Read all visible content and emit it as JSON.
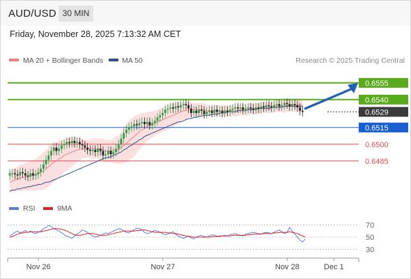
{
  "header": {
    "symbol": "AUD/USD",
    "interval": "30 MIN",
    "datetime": "Friday, November 28, 2025 7:13:32 AM CET"
  },
  "legend": {
    "ma20": "MA 20 + Bollinger Bands",
    "ma50": "MA 50",
    "ma20_color": "#f08080",
    "ma50_color": "#2f4f8f",
    "credit": "Research © 2025 Trading Central"
  },
  "rsi_legend": {
    "rsi": "RSI",
    "ma": "9MA",
    "rsi_color": "#5b7fd6",
    "ma_color": "#e02020"
  },
  "chart_data": [
    {
      "type": "candlestick",
      "title": "AUD/USD",
      "ylim": [
        0.6453,
        0.6568
      ],
      "x_ticks": [
        {
          "label": "Nov 26",
          "index": 10
        },
        {
          "label": "Nov 27",
          "index": 58
        },
        {
          "label": "Nov 28",
          "index": 106
        },
        {
          "label": "Dec 1",
          "index": 124
        }
      ],
      "levels": [
        {
          "value": 0.6555,
          "label": "0.6555",
          "color": "#5aaa1e",
          "style": "box"
        },
        {
          "value": 0.654,
          "label": "0.6540",
          "color": "#5aaa1e",
          "style": "box"
        },
        {
          "value": 0.6529,
          "label": "0.6529",
          "color": "#3a3a3a",
          "style": "box"
        },
        {
          "value": 0.6515,
          "label": "0.6515",
          "color": "#1a5fd0",
          "style": "box"
        },
        {
          "value": 0.65,
          "label": "0.6500",
          "color": "#e05050",
          "style": "text"
        },
        {
          "value": 0.6485,
          "label": "0.6485",
          "color": "#e05050",
          "style": "text"
        }
      ],
      "close": [
        0.6474,
        0.6474,
        0.6473,
        0.6472,
        0.6475,
        0.6474,
        0.6472,
        0.6471,
        0.6474,
        0.6472,
        0.6473,
        0.6475,
        0.6478,
        0.6482,
        0.6486,
        0.649,
        0.6494,
        0.6497,
        0.6494,
        0.6496,
        0.6499,
        0.65,
        0.6502,
        0.6501,
        0.6503,
        0.6501,
        0.6502,
        0.65,
        0.6499,
        0.6497,
        0.6495,
        0.6494,
        0.6495,
        0.6493,
        0.6496,
        0.6494,
        0.649,
        0.6491,
        0.6494,
        0.6491,
        0.6493,
        0.6496,
        0.65,
        0.6505,
        0.651,
        0.6513,
        0.6515,
        0.6516,
        0.6518,
        0.6517,
        0.6519,
        0.652,
        0.6518,
        0.652,
        0.6517,
        0.6519,
        0.6521,
        0.6524,
        0.6526,
        0.6528,
        0.6531,
        0.6532,
        0.6533,
        0.6532,
        0.6534,
        0.6533,
        0.6535,
        0.6536,
        0.6535,
        0.6532,
        0.6528,
        0.653,
        0.6528,
        0.6531,
        0.653,
        0.6527,
        0.6529,
        0.653,
        0.6528,
        0.6531,
        0.6529,
        0.653,
        0.6528,
        0.653,
        0.6529,
        0.6531,
        0.6532,
        0.6533,
        0.6532,
        0.6533,
        0.6531,
        0.6532,
        0.6533,
        0.6532,
        0.6531,
        0.6533,
        0.6532,
        0.6534,
        0.6533,
        0.6535,
        0.6534,
        0.6533,
        0.6535,
        0.6536,
        0.6534,
        0.6535,
        0.6537,
        0.6536,
        0.6534,
        0.6536,
        0.6535,
        0.6533,
        0.653,
        0.6529
      ],
      "ma20": [
        0.6466,
        0.6467,
        0.6468,
        0.6469,
        0.647,
        0.647,
        0.6471,
        0.6471,
        0.6472,
        0.6472,
        0.6473,
        0.6474,
        0.6475,
        0.6476,
        0.6478,
        0.648,
        0.6482,
        0.6484,
        0.6485,
        0.6487,
        0.6488,
        0.649,
        0.6491,
        0.6492,
        0.6493,
        0.6494,
        0.6495,
        0.6495,
        0.6496,
        0.6496,
        0.6496,
        0.6496,
        0.6496,
        0.6496,
        0.6496,
        0.6495,
        0.6495,
        0.6494,
        0.6494,
        0.6494,
        0.6494,
        0.6495,
        0.6495,
        0.6497,
        0.6499,
        0.6501,
        0.6503,
        0.6505,
        0.6507,
        0.6509,
        0.6511,
        0.6513,
        0.6514,
        0.6516,
        0.6517,
        0.6518,
        0.6519,
        0.652,
        0.6521,
        0.6522,
        0.6523,
        0.6524,
        0.6525,
        0.6526,
        0.6527,
        0.6528,
        0.6529,
        0.653,
        0.653,
        0.6531,
        0.6531,
        0.6531,
        0.6531,
        0.6531,
        0.6531,
        0.6531,
        0.653,
        0.653,
        0.653,
        0.653,
        0.653,
        0.653,
        0.653,
        0.653,
        0.653,
        0.653,
        0.653,
        0.653,
        0.653,
        0.6531,
        0.6531,
        0.6531,
        0.6531,
        0.6532,
        0.6532,
        0.6532,
        0.6532,
        0.6532,
        0.6533,
        0.6533,
        0.6533,
        0.6533,
        0.6533,
        0.6534,
        0.6534,
        0.6534,
        0.6534,
        0.6535,
        0.6535,
        0.6535,
        0.6535,
        0.6535,
        0.6535,
        0.6535
      ],
      "ma50": [
        0.6458,
        0.6459,
        0.6459,
        0.646,
        0.646,
        0.6461,
        0.6461,
        0.6462,
        0.6462,
        0.6463,
        0.6463,
        0.6464,
        0.6464,
        0.6465,
        0.6466,
        0.6466,
        0.6467,
        0.6468,
        0.6469,
        0.647,
        0.6471,
        0.6472,
        0.6473,
        0.6474,
        0.6475,
        0.6476,
        0.6477,
        0.6478,
        0.6479,
        0.648,
        0.6481,
        0.6482,
        0.6483,
        0.6484,
        0.6485,
        0.6486,
        0.6487,
        0.6488,
        0.6488,
        0.6489,
        0.649,
        0.6491,
        0.6492,
        0.6493,
        0.6495,
        0.6496,
        0.6498,
        0.6499,
        0.6501,
        0.6502,
        0.6504,
        0.6505,
        0.6507,
        0.6508,
        0.6509,
        0.651,
        0.6511,
        0.6512,
        0.6513,
        0.6514,
        0.6515,
        0.6516,
        0.6517,
        0.6518,
        0.6519,
        0.652,
        0.652,
        0.6521,
        0.6522,
        0.6523,
        0.6523,
        0.6524,
        0.6524,
        0.6525,
        0.6525,
        0.6526,
        0.6526,
        0.6526,
        0.6527,
        0.6527,
        0.6527,
        0.6528,
        0.6528,
        0.6528,
        0.6529,
        0.6529,
        0.6529,
        0.6529,
        0.653,
        0.653,
        0.653,
        0.653,
        0.6531,
        0.6531,
        0.6531,
        0.6531,
        0.6532,
        0.6532,
        0.6532,
        0.6532,
        0.6532,
        0.6533,
        0.6533,
        0.6533,
        0.6533,
        0.6533,
        0.6534,
        0.6534,
        0.6534,
        0.6534,
        0.6534,
        0.6534,
        0.6534,
        0.6534
      ],
      "bollinger_width": [
        0.001,
        0.001,
        0.0011,
        0.0011,
        0.0012,
        0.0012,
        0.0012,
        0.0013,
        0.0013,
        0.0014,
        0.0014,
        0.0015,
        0.0016,
        0.0017,
        0.0017,
        0.0018,
        0.0018,
        0.0018,
        0.0017,
        0.0017,
        0.0016,
        0.0015,
        0.0015,
        0.0014,
        0.0013,
        0.0012,
        0.0011,
        0.001,
        0.0009,
        0.0008,
        0.0008,
        0.0008,
        0.0009,
        0.0009,
        0.0009,
        0.001,
        0.001,
        0.001,
        0.001,
        0.001,
        0.0011,
        0.0012,
        0.0013,
        0.0014,
        0.0016,
        0.0017,
        0.0018,
        0.0018,
        0.0018,
        0.0017,
        0.0016,
        0.0015,
        0.0014,
        0.0013,
        0.0012,
        0.0012,
        0.0011,
        0.0011,
        0.0011,
        0.0011,
        0.0011,
        0.0011,
        0.0011,
        0.0011,
        0.001,
        0.001,
        0.0009,
        0.0008,
        0.0008,
        0.0007,
        0.0007,
        0.0006,
        0.0006,
        0.0006,
        0.0006,
        0.0006,
        0.0005,
        0.0005,
        0.0005,
        0.0005,
        0.0005,
        0.0005,
        0.0005,
        0.0005,
        0.0005,
        0.0005,
        0.0005,
        0.0005,
        0.0005,
        0.0005,
        0.0005,
        0.0005,
        0.0005,
        0.0005,
        0.0005,
        0.0005,
        0.0005,
        0.0005,
        0.0005,
        0.0005,
        0.0005,
        0.0005,
        0.0005,
        0.0005,
        0.0005,
        0.0005,
        0.0006,
        0.0006,
        0.0006,
        0.0006,
        0.0006,
        0.0006,
        0.0006,
        0.0006
      ],
      "forecast_arrow": {
        "from_index": 113,
        "from_value": 0.6532,
        "to_value": 0.6555
      }
    },
    {
      "type": "line",
      "title": "RSI",
      "ylim": [
        20,
        80
      ],
      "y_ticks": [
        70,
        50,
        30
      ],
      "rsi": [
        52,
        55,
        58,
        60,
        57,
        59,
        61,
        58,
        60,
        57,
        56,
        58,
        60,
        64,
        66,
        69,
        68,
        64,
        62,
        60,
        57,
        54,
        52,
        50,
        48,
        52,
        55,
        58,
        62,
        60,
        58,
        55,
        52,
        50,
        51,
        53,
        55,
        57,
        56,
        58,
        60,
        62,
        64,
        63,
        60,
        58,
        57,
        60,
        62,
        65,
        64,
        62,
        58,
        56,
        57,
        59,
        61,
        60,
        58,
        56,
        54,
        55,
        57,
        59,
        55,
        52,
        50,
        48,
        50,
        52,
        49,
        47,
        50,
        52,
        53,
        51,
        50,
        52,
        54,
        53,
        52,
        51,
        52,
        53,
        52,
        54,
        55,
        56,
        54,
        53,
        52,
        55,
        56,
        57,
        58,
        57,
        56,
        55,
        57,
        58,
        57,
        56,
        58,
        60,
        62,
        59,
        56,
        58,
        66,
        60,
        55,
        50,
        45,
        42,
        47
      ],
      "ma9": [
        50,
        51,
        53,
        55,
        56,
        57,
        58,
        58,
        59,
        59,
        59,
        59,
        59,
        60,
        61,
        62,
        63,
        64,
        64,
        64,
        63,
        62,
        60,
        58,
        56,
        54,
        53,
        53,
        54,
        55,
        56,
        56,
        56,
        55,
        54,
        53,
        53,
        53,
        54,
        55,
        56,
        57,
        58,
        59,
        60,
        60,
        60,
        60,
        60,
        61,
        61,
        62,
        62,
        61,
        60,
        59,
        58,
        58,
        58,
        58,
        58,
        57,
        57,
        56,
        56,
        55,
        54,
        53,
        52,
        51,
        51,
        50,
        50,
        50,
        50,
        50,
        50,
        50,
        51,
        51,
        51,
        52,
        52,
        52,
        52,
        52,
        53,
        53,
        53,
        53,
        53,
        53,
        54,
        54,
        55,
        55,
        55,
        55,
        56,
        56,
        56,
        56,
        57,
        57,
        58,
        58,
        58,
        58,
        59,
        58,
        57,
        56,
        54,
        52,
        50
      ]
    }
  ]
}
